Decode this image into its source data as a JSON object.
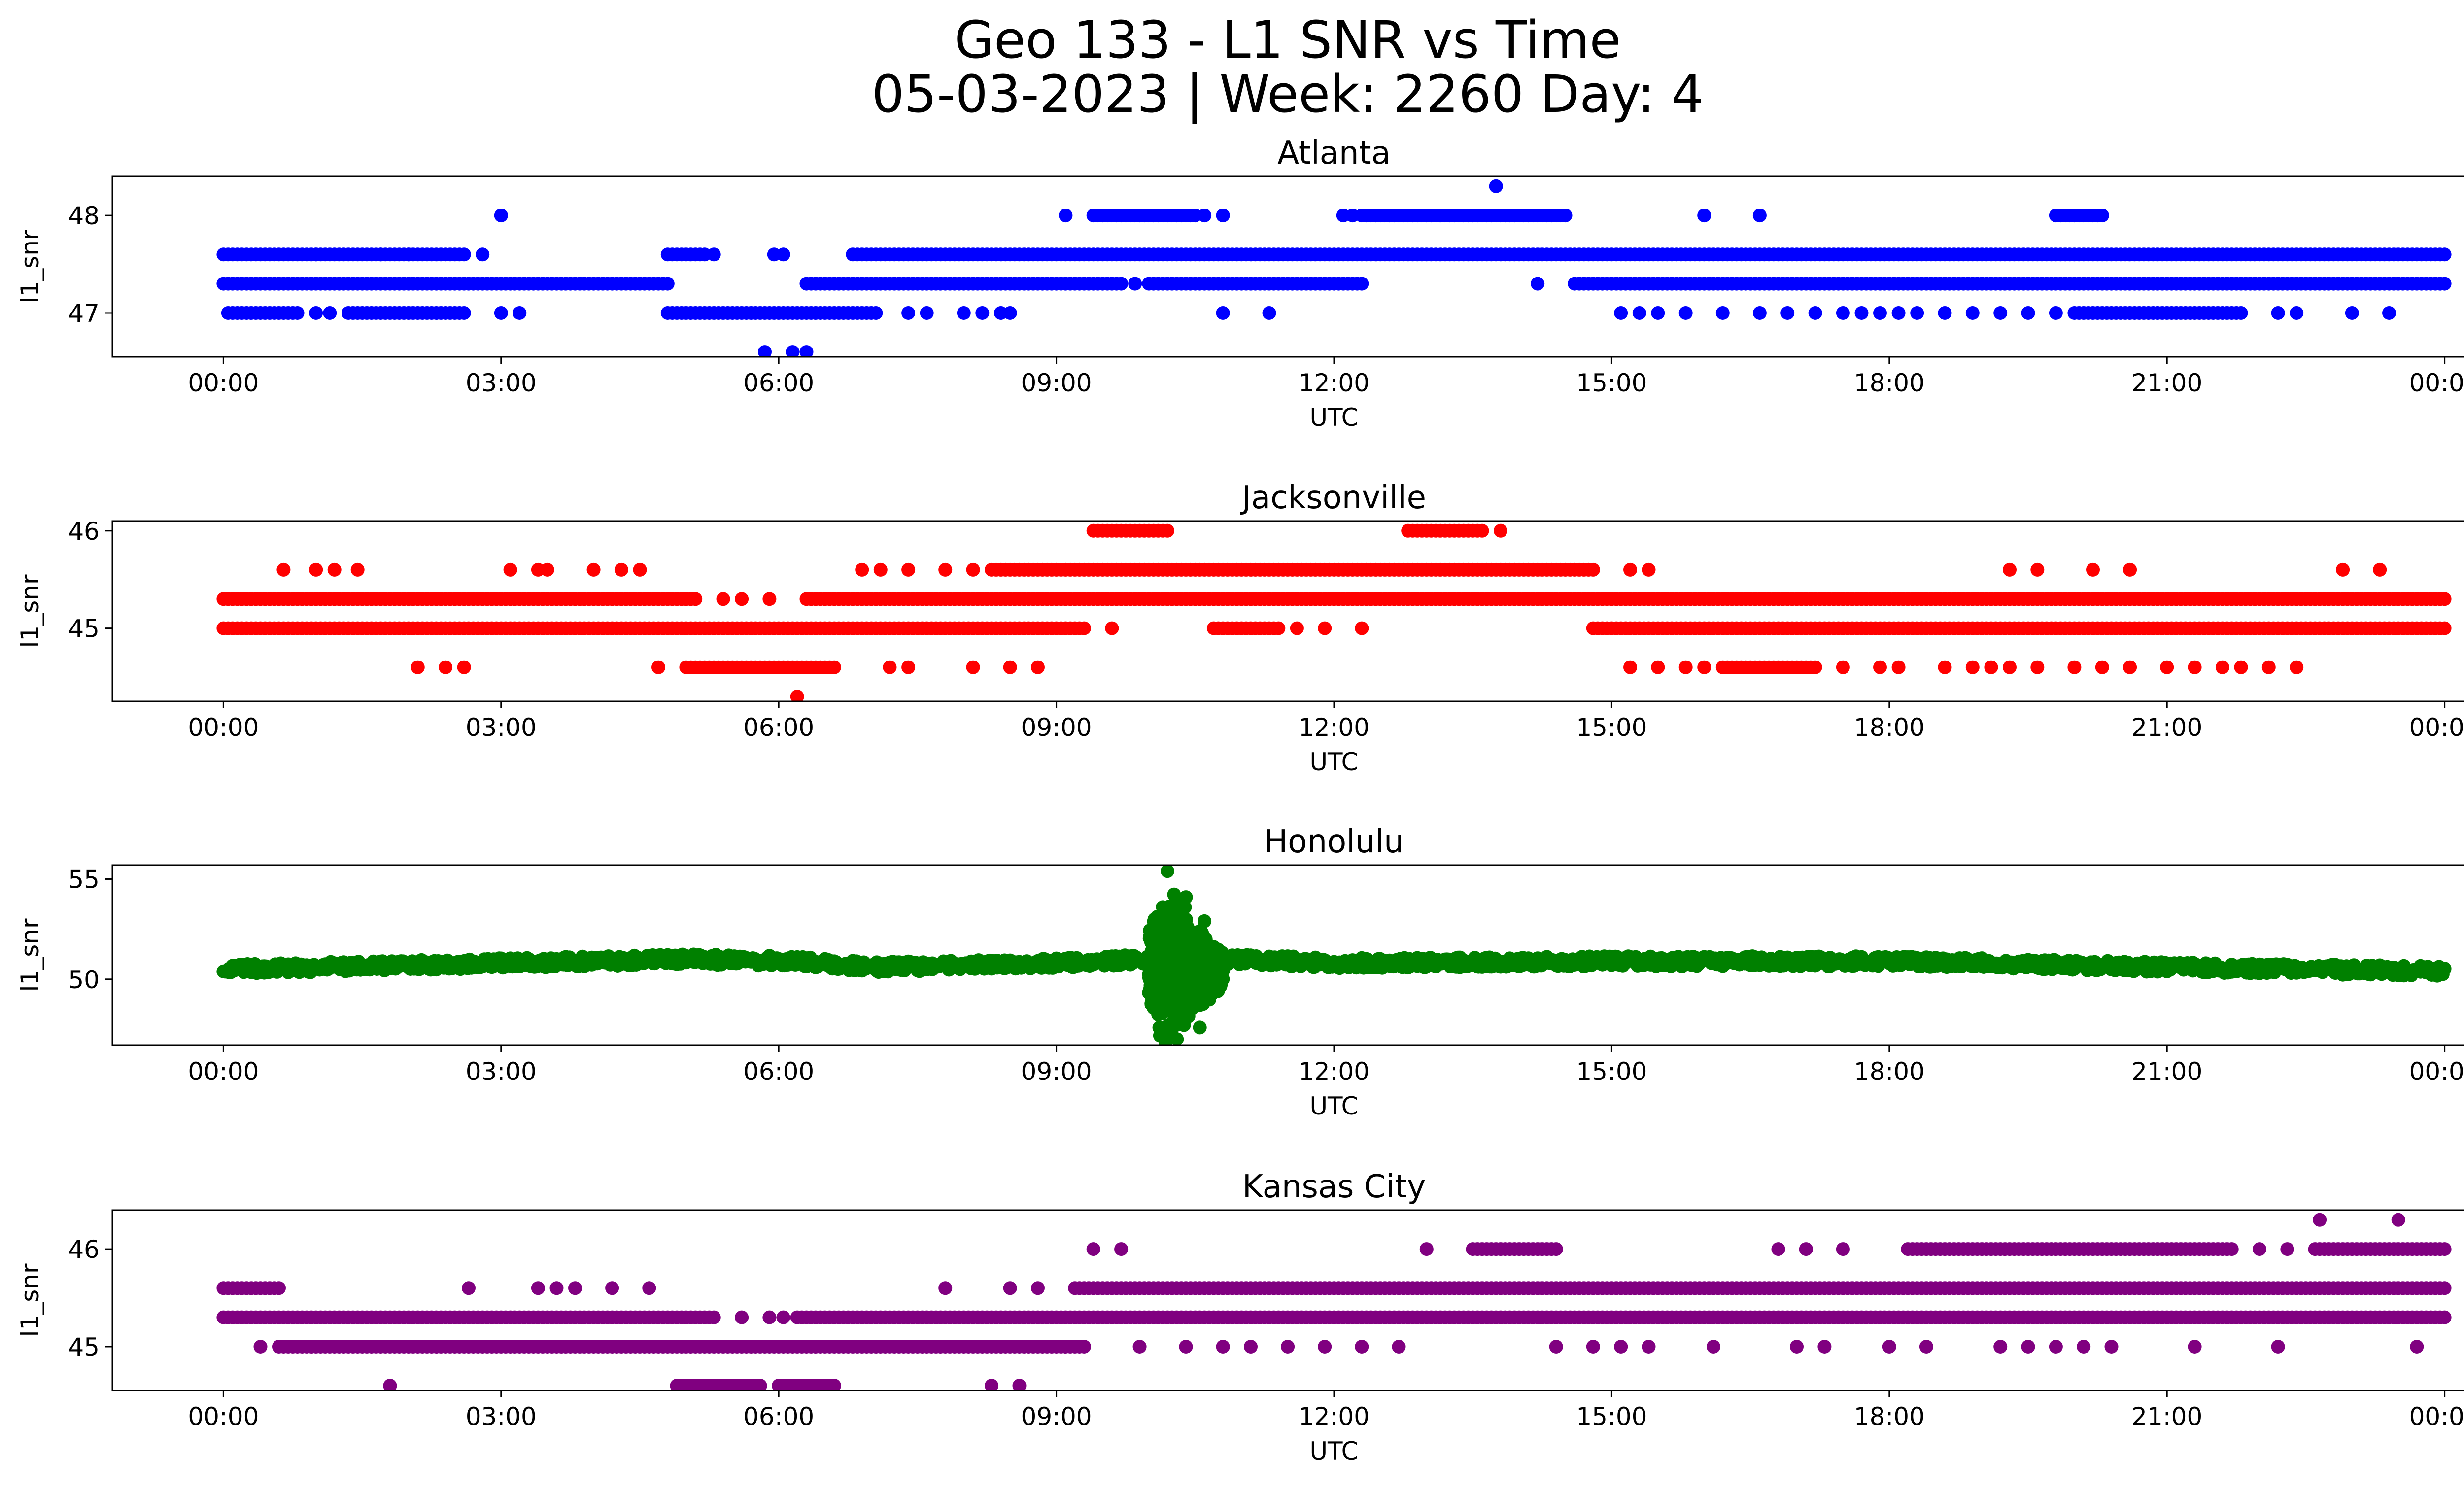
{
  "figure": {
    "title_line1": "Geo 133 - L1 SNR vs Time",
    "title_line2": "05-03-2023 | Week: 2260 Day: 4"
  },
  "chart_data": [
    {
      "type": "scatter",
      "title": "Atlanta",
      "xlabel": "UTC",
      "ylabel": "l1_snr",
      "color": "#0000ff",
      "xticks": [
        "00:00",
        "03:00",
        "06:00",
        "09:00",
        "12:00",
        "15:00",
        "18:00",
        "21:00",
        "00:00"
      ],
      "xlim_hours": [
        -1.2,
        25.2
      ],
      "yticks": [
        47,
        48
      ],
      "ylim": [
        46.55,
        48.4
      ],
      "bands": [
        {
          "y": 47.6,
          "ranges": [
            [
              0.0,
              2.6
            ],
            [
              4.8,
              5.2
            ],
            [
              6.8,
              24.0
            ]
          ]
        },
        {
          "y": 47.3,
          "ranges": [
            [
              0.0,
              4.8
            ],
            [
              6.3,
              9.7
            ],
            [
              10.0,
              12.3
            ],
            [
              14.6,
              24.0
            ]
          ]
        },
        {
          "y": 47.0,
          "ranges": [
            [
              0.1,
              0.8
            ],
            [
              1.35,
              2.6
            ],
            [
              4.8,
              7.05
            ],
            [
              20.0,
              21.8
            ]
          ]
        },
        {
          "y": 48.0,
          "ranges": [
            [
              9.4,
              10.5
            ],
            [
              12.3,
              14.5
            ],
            [
              19.8,
              20.3
            ]
          ]
        }
      ],
      "sparse_points": [
        {
          "y": 47.6,
          "x": [
            1.0,
            1.7,
            2.0,
            2.8,
            5.3,
            5.95,
            6.05
          ]
        },
        {
          "y": 47.3,
          "x": [
            9.85,
            14.2
          ]
        },
        {
          "y": 47.0,
          "x": [
            0.05,
            1.0,
            1.15,
            3.0,
            3.2,
            7.4,
            7.6,
            8.0,
            8.2,
            8.4,
            8.5,
            10.8,
            11.3,
            15.1,
            15.3,
            15.5,
            15.8,
            16.2,
            16.6,
            16.9,
            17.2,
            17.5,
            17.7,
            17.9,
            18.1,
            18.3,
            18.6,
            18.9,
            19.2,
            19.5,
            19.8,
            22.2,
            22.4,
            23.0,
            23.4
          ]
        },
        {
          "y": 48.0,
          "x": [
            3.0,
            9.1,
            10.6,
            10.8,
            12.1,
            12.2,
            16.0,
            16.6
          ]
        },
        {
          "y": 48.3,
          "x": [
            13.75
          ]
        },
        {
          "y": 46.6,
          "x": [
            5.85,
            6.15,
            6.3
          ]
        }
      ]
    },
    {
      "type": "scatter",
      "title": "Jacksonville",
      "xlabel": "UTC",
      "ylabel": "l1_snr",
      "color": "#ff0000",
      "xticks": [
        "00:00",
        "03:00",
        "06:00",
        "09:00",
        "12:00",
        "15:00",
        "18:00",
        "21:00",
        "00:00"
      ],
      "xlim_hours": [
        -1.2,
        25.2
      ],
      "yticks": [
        45,
        46
      ],
      "ylim": [
        44.25,
        46.1
      ],
      "bands": [
        {
          "y": 45.3,
          "ranges": [
            [
              0.0,
              5.1
            ],
            [
              6.3,
              24.0
            ]
          ]
        },
        {
          "y": 45.0,
          "ranges": [
            [
              0.0,
              9.3
            ],
            [
              10.7,
              11.4
            ],
            [
              14.8,
              24.0
            ]
          ]
        },
        {
          "y": 45.6,
          "ranges": [
            [
              8.3,
              14.8
            ]
          ]
        },
        {
          "y": 44.6,
          "ranges": [
            [
              5.0,
              6.6
            ],
            [
              16.2,
              17.2
            ]
          ]
        },
        {
          "y": 46.0,
          "ranges": [
            [
              9.4,
              10.2
            ],
            [
              12.8,
              13.6
            ]
          ]
        }
      ],
      "sparse_points": [
        {
          "y": 45.6,
          "x": [
            0.65,
            1.0,
            1.2,
            1.45,
            3.1,
            3.4,
            3.5,
            4.0,
            4.3,
            4.5,
            6.9,
            7.1,
            7.4,
            7.8,
            8.1,
            15.2,
            15.4,
            19.3,
            19.6,
            20.2,
            20.6,
            22.9,
            23.3
          ]
        },
        {
          "y": 45.3,
          "x": [
            5.4,
            5.6,
            5.9
          ]
        },
        {
          "y": 45.0,
          "x": [
            9.6,
            11.6,
            11.9,
            12.3
          ]
        },
        {
          "y": 44.6,
          "x": [
            2.1,
            2.4,
            2.6,
            4.7,
            7.2,
            7.4,
            8.1,
            8.5,
            8.8,
            15.2,
            15.5,
            15.8,
            16.0,
            17.5,
            17.9,
            18.1,
            18.6,
            18.9,
            19.1,
            19.3,
            19.6,
            20.0,
            20.3,
            20.6,
            21.0,
            21.3,
            21.6,
            21.8,
            22.1,
            22.4
          ]
        },
        {
          "y": 46.0,
          "x": [
            13.8
          ]
        },
        {
          "y": 44.3,
          "x": [
            6.2
          ]
        }
      ]
    },
    {
      "type": "scatter",
      "title": "Honolulu",
      "xlabel": "UTC",
      "ylabel": "l1_snr",
      "color": "#008000",
      "xticks": [
        "00:00",
        "03:00",
        "06:00",
        "09:00",
        "12:00",
        "15:00",
        "18:00",
        "21:00",
        "00:00"
      ],
      "xlim_hours": [
        -1.2,
        25.2
      ],
      "yticks": [
        50,
        55
      ],
      "ylim": [
        46.7,
        55.7
      ],
      "baseline_profile": [
        [
          0,
          50.5
        ],
        [
          3,
          50.8
        ],
        [
          5,
          51.0
        ],
        [
          6.2,
          50.9
        ],
        [
          7,
          50.6
        ],
        [
          9,
          50.8
        ],
        [
          10,
          51.0
        ],
        [
          11,
          51.0
        ],
        [
          12,
          50.8
        ],
        [
          15,
          50.9
        ],
        [
          18,
          50.9
        ],
        [
          21,
          50.6
        ],
        [
          24,
          50.4
        ]
      ],
      "spread": 0.5,
      "burst": {
        "x_range": [
          10.0,
          10.8
        ],
        "y_min": 47.1,
        "y_max": 55.4,
        "center": 50.5
      },
      "outliers": [
        [
          10.2,
          55.4
        ],
        [
          10.15,
          53.6
        ],
        [
          10.4,
          54.1
        ],
        [
          10.6,
          52.9
        ],
        [
          10.12,
          47.2
        ],
        [
          10.55,
          47.6
        ],
        [
          10.3,
          48.1
        ]
      ]
    },
    {
      "type": "scatter",
      "title": "Kansas City",
      "xlabel": "UTC",
      "ylabel": "l1_snr",
      "color": "#800080",
      "xticks": [
        "00:00",
        "03:00",
        "06:00",
        "09:00",
        "12:00",
        "15:00",
        "18:00",
        "21:00",
        "00:00"
      ],
      "xlim_hours": [
        -1.2,
        25.2
      ],
      "yticks": [
        45,
        46
      ],
      "ylim": [
        44.55,
        46.4
      ],
      "bands": [
        {
          "y": 45.3,
          "ranges": [
            [
              0.0,
              5.3
            ],
            [
              6.2,
              24.0
            ]
          ]
        },
        {
          "y": 45.0,
          "ranges": [
            [
              0.6,
              9.3
            ]
          ]
        },
        {
          "y": 45.6,
          "ranges": [
            [
              0.0,
              0.6
            ],
            [
              9.2,
              24.0
            ]
          ]
        },
        {
          "y": 44.6,
          "ranges": [
            [
              4.9,
              5.8
            ],
            [
              6.0,
              6.6
            ]
          ]
        },
        {
          "y": 46.0,
          "ranges": [
            [
              13.5,
              14.4
            ],
            [
              18.2,
              21.7
            ],
            [
              22.6,
              24.0
            ]
          ]
        }
      ],
      "sparse_points": [
        {
          "y": 45.6,
          "x": [
            2.65,
            3.4,
            3.6,
            3.8,
            4.2,
            4.6,
            7.8,
            8.5,
            8.8
          ]
        },
        {
          "y": 45.3,
          "x": [
            5.6,
            5.9,
            6.05
          ]
        },
        {
          "y": 45.0,
          "x": [
            0.4,
            9.9,
            10.4,
            10.8,
            11.1,
            11.5,
            11.9,
            12.3,
            12.7,
            14.4,
            14.8,
            15.1,
            15.4,
            16.1,
            17.0,
            17.3,
            18.0,
            18.4,
            19.2,
            19.5,
            19.8,
            20.1,
            20.4,
            21.3,
            22.2,
            23.7
          ]
        },
        {
          "y": 44.6,
          "x": [
            1.8,
            8.3,
            8.6
          ]
        },
        {
          "y": 46.0,
          "x": [
            9.4,
            9.7,
            13.0,
            16.8,
            17.1,
            17.5,
            22.0,
            22.3
          ]
        },
        {
          "y": 46.3,
          "x": [
            22.65,
            23.5
          ]
        }
      ]
    }
  ]
}
